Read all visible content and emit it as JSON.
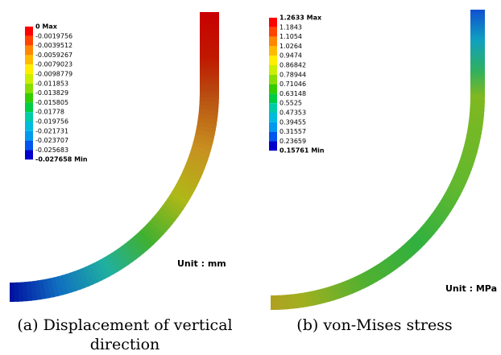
{
  "panels": [
    {
      "legend": [
        "0 Max",
        "-0.0019756",
        "-0.0039512",
        "-0.0059267",
        "-0.0079023",
        "-0.0098779",
        "-0.011853",
        "-0.013829",
        "-0.015805",
        "-0.01778",
        "-0.019756",
        "-0.021731",
        "-0.023707",
        "-0.025683",
        "-0.027658 Min"
      ],
      "unit": "Unit : mm",
      "caption": [
        "(a) Displacement of vertical",
        "direction"
      ]
    },
    {
      "legend": [
        "1.2633 Max",
        "1.1843",
        "1.1054",
        "1.0264",
        "0.9474",
        "0.86842",
        "0.78944",
        "0.71046",
        "0.63148",
        "0.5525",
        "0.47353",
        "0.39455",
        "0.31557",
        "0.23659",
        "0.15761 Min"
      ],
      "unit": "Unit : MPa",
      "caption": [
        "(b) von-Mises stress"
      ]
    }
  ]
}
